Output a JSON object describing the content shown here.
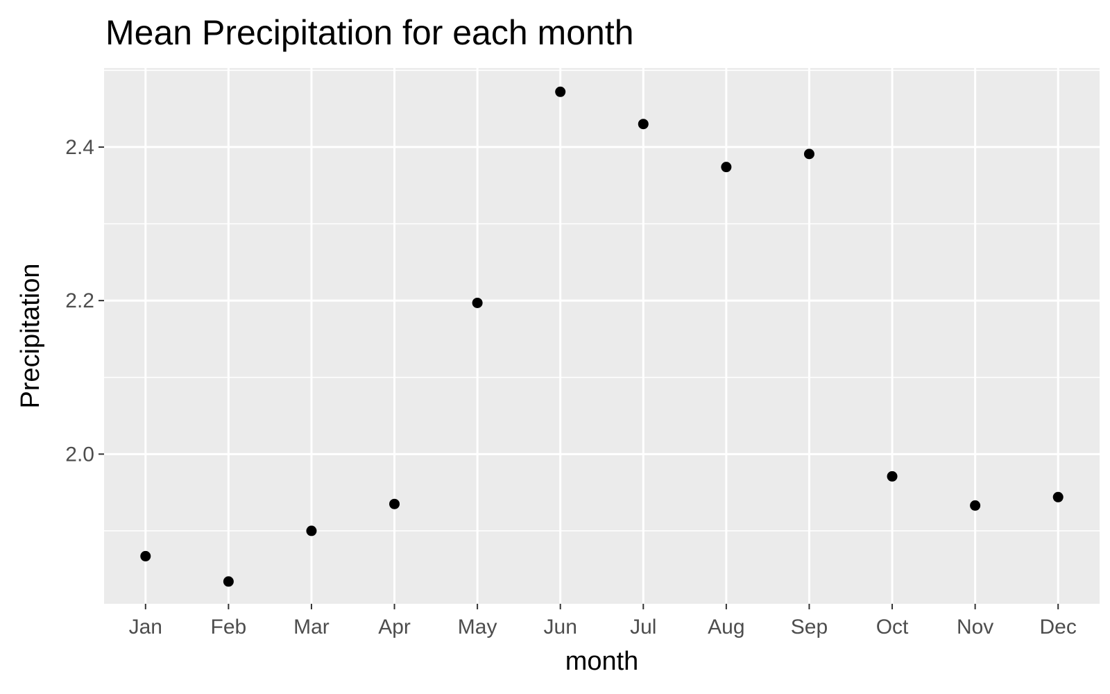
{
  "title": "Mean Precipitation for each month",
  "colors": {
    "panel": "#ebebeb",
    "grid": "#ffffff",
    "point": "#000000",
    "tick": "#333333",
    "tick_label": "#4d4d4d"
  },
  "chart_data": {
    "type": "scatter",
    "title": "Mean Precipitation for each month",
    "xlabel": "month",
    "ylabel": "Precipitation",
    "categories": [
      "Jan",
      "Feb",
      "Mar",
      "Apr",
      "May",
      "Jun",
      "Jul",
      "Aug",
      "Sep",
      "Oct",
      "Nov",
      "Dec"
    ],
    "values": [
      1.867,
      1.834,
      1.9,
      1.935,
      2.197,
      2.472,
      2.43,
      2.374,
      2.391,
      1.971,
      1.933,
      1.944
    ],
    "ylim": [
      1.805,
      2.503
    ],
    "yticks": [
      2.0,
      2.2,
      2.4
    ],
    "ytick_labels": [
      "2.0",
      "2.2",
      "2.4"
    ],
    "grid": true,
    "legend": "none"
  }
}
